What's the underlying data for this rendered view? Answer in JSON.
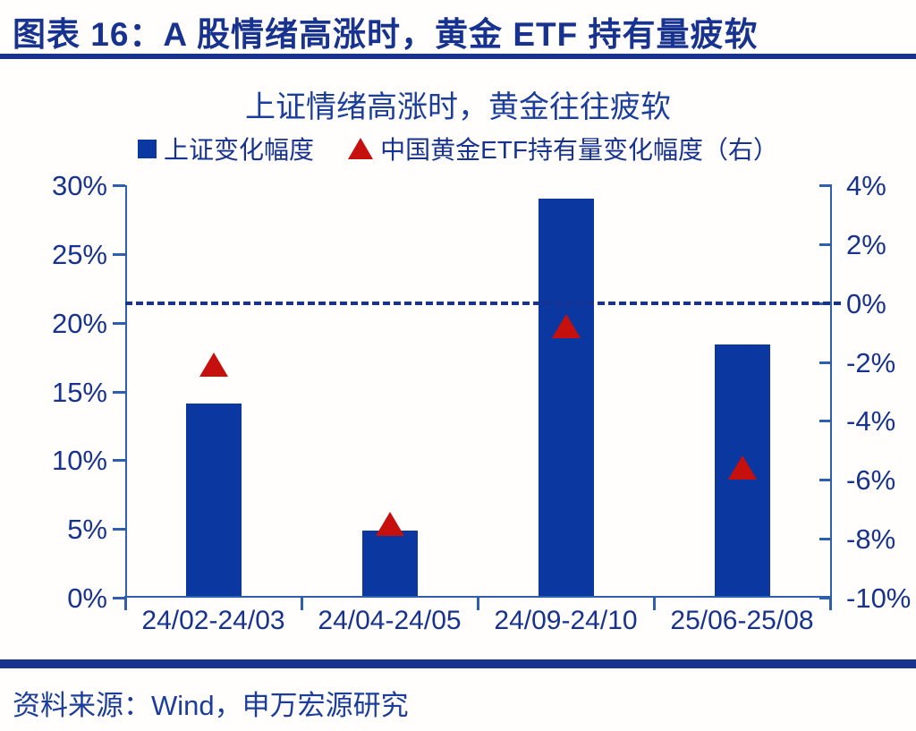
{
  "header": {
    "title": "图表 16：A 股情绪高涨时，黄金 ETF 持有量疲软"
  },
  "footer": {
    "source": "资料来源：Wind，申万宏源研究"
  },
  "colors": {
    "navy_text": "#17338f",
    "bar_blue": "#0a37a0",
    "marker_red": "#c5100e",
    "axis_blue": "#2e5fae",
    "background": "#fffefd"
  },
  "chart_data": {
    "type": "bar",
    "title": "上证情绪高涨时，黄金往往疲软",
    "categories": [
      "24/02-24/03",
      "24/04-24/05",
      "24/09-24/10",
      "25/06-25/08"
    ],
    "series": [
      {
        "name": "上证变化幅度",
        "type": "bar",
        "axis": "left",
        "color": "#0a37a0",
        "values": [
          14.1,
          4.9,
          29.0,
          18.4
        ]
      },
      {
        "name": "中国黄金ETF持有量变化幅度（右）",
        "type": "triangle",
        "axis": "right",
        "color": "#c5100e",
        "values": [
          -2.1,
          -7.5,
          -0.8,
          -5.6
        ]
      }
    ],
    "left_axis": {
      "min": 0,
      "max": 30,
      "step": 5,
      "tick_labels": [
        "0%",
        "5%",
        "10%",
        "15%",
        "20%",
        "25%",
        "30%"
      ]
    },
    "right_axis": {
      "min": -10,
      "max": 4,
      "step": 2,
      "tick_labels": [
        "-10%",
        "-8%",
        "-6%",
        "-4%",
        "-2%",
        "0%",
        "2%",
        "4%"
      ]
    },
    "reference_line": {
      "axis": "right",
      "value": 0,
      "style": "dashed"
    },
    "legend_position": "top",
    "grid": false
  }
}
